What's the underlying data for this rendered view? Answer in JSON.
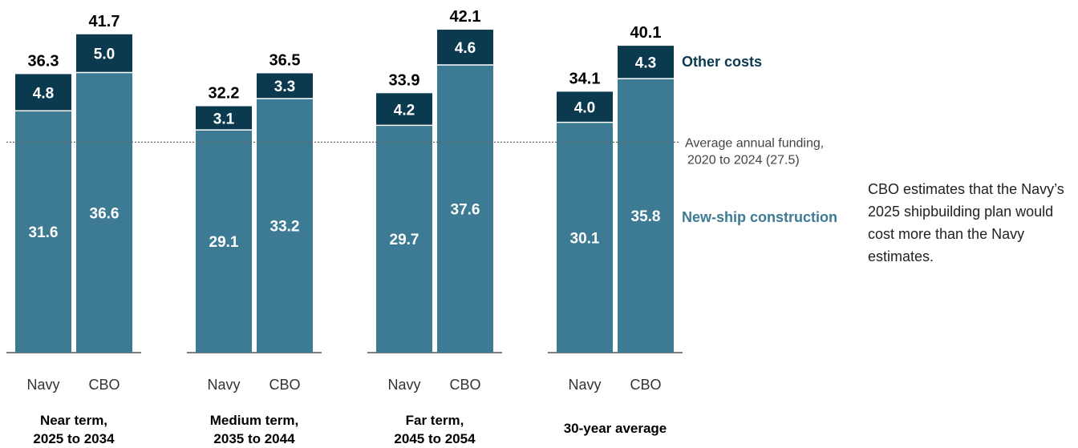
{
  "chart_data": {
    "type": "bar",
    "stacked": true,
    "groups": [
      {
        "label_lines": [
          "Near term,",
          "2025 to 2034"
        ],
        "bars": [
          {
            "name": "Navy",
            "new_ship": 31.6,
            "other": 4.8,
            "total": 36.3
          },
          {
            "name": "CBO",
            "new_ship": 36.6,
            "other": 5.0,
            "total": 41.7
          }
        ]
      },
      {
        "label_lines": [
          "Medium term,",
          "2035 to 2044"
        ],
        "bars": [
          {
            "name": "Navy",
            "new_ship": 29.1,
            "other": 3.1,
            "total": 32.2
          },
          {
            "name": "CBO",
            "new_ship": 33.2,
            "other": 3.3,
            "total": 36.5
          }
        ]
      },
      {
        "label_lines": [
          "Far term,",
          "2045 to 2054"
        ],
        "bars": [
          {
            "name": "Navy",
            "new_ship": 29.7,
            "other": 4.2,
            "total": 33.9
          },
          {
            "name": "CBO",
            "new_ship": 37.6,
            "other": 4.6,
            "total": 42.1
          }
        ]
      },
      {
        "label_lines": [
          "30-year average"
        ],
        "bars": [
          {
            "name": "Navy",
            "new_ship": 30.1,
            "other": 4.0,
            "total": 34.1
          },
          {
            "name": "CBO",
            "new_ship": 35.8,
            "other": 4.3,
            "total": 40.1
          }
        ]
      }
    ],
    "series": [
      {
        "key": "new_ship",
        "name": "New-ship construction",
        "color": "#3d7a93"
      },
      {
        "key": "other",
        "name": "Other costs",
        "color": "#0b3a4f"
      }
    ],
    "reference_line": {
      "value": 27.5,
      "label_lines": [
        "Average annual funding,",
        "2020 to 2024 (27.5)"
      ]
    },
    "ylim": [
      0,
      42.1
    ],
    "grid": false,
    "legend": "right"
  },
  "note": "CBO estimates that the Navy’s 2025 shipbuilding plan would cost more than the Navy estimates.",
  "colors": {
    "new_ship": "#3d7a93",
    "other": "#0b3a4f",
    "baseline": "#555555",
    "reference": "#666666"
  }
}
